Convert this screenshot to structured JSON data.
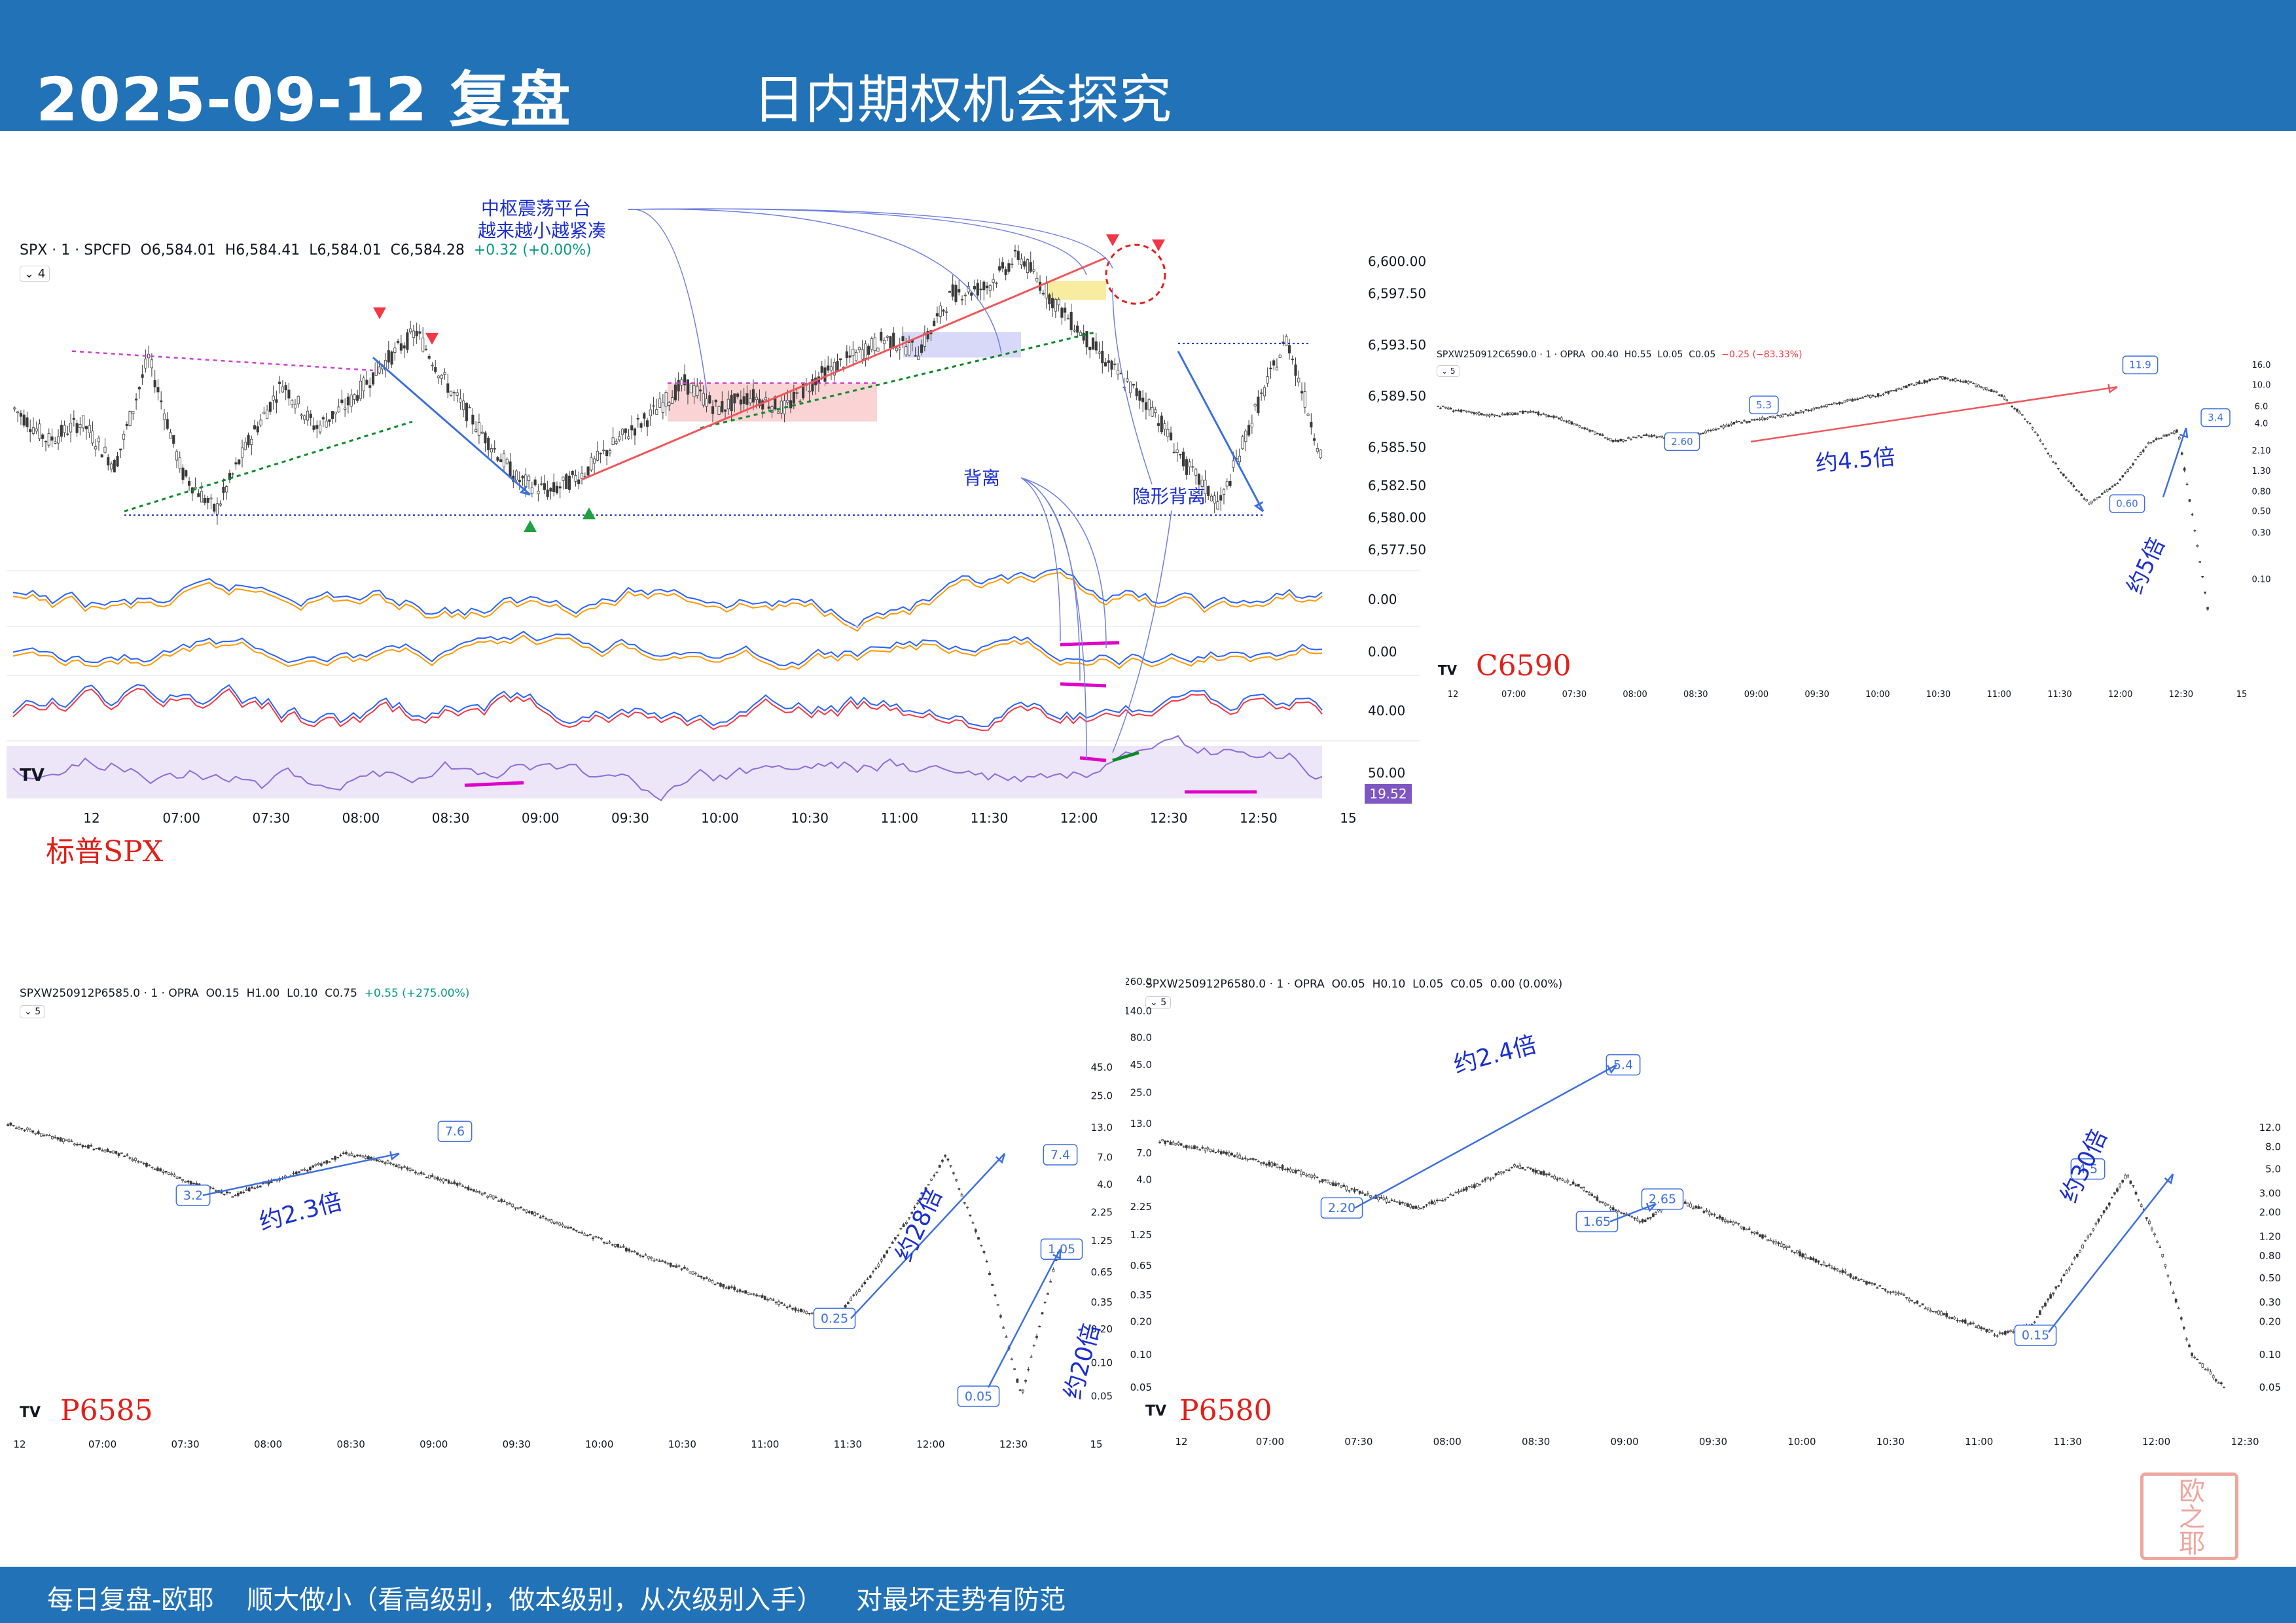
{
  "header": {
    "date_title": "2025-09-12 复盘",
    "subtitle": "日内期权机会探究"
  },
  "footer": {
    "text": "每日复盘-欧耶    顺大做小（看高级别，做本级别，从次级别入手）    对最坏走势有防范"
  },
  "stamp": "欧之耶",
  "colors": {
    "header_bg": "#2272b8",
    "candle": "#3a3a3a",
    "annot_blue": "#1c2fd0",
    "label_red": "#e0201a",
    "magenta": "#e000c8",
    "green_dash": "#0a8a2a",
    "arrow_blue": "#3d6fe0",
    "red_line": "#f0565a"
  },
  "chart_data": [
    {
      "id": "spx",
      "type": "line",
      "caption": "标普SPX",
      "tv_logo": "TV",
      "symbol": "SPX · 1 · SPCFD",
      "ohlc": {
        "o": "O6,584.01",
        "h": "H6,584.41",
        "l": "L6,584.01",
        "c": "C6,584.28",
        "chg": "+0.32 (+0.00%)"
      },
      "interval_badge": "4",
      "x_labels": [
        "12",
        "07:00",
        "07:30",
        "08:00",
        "08:30",
        "09:00",
        "09:30",
        "10:00",
        "10:30",
        "11:00",
        "11:30",
        "12:00",
        "12:30",
        "12:50",
        "15"
      ],
      "y_labels": [
        "6,600.00",
        "6,597.50",
        "6,593.50",
        "6,589.50",
        "6,585.50",
        "6,582.50",
        "6,580.00",
        "6,577.50"
      ],
      "ylim": [
        6577.5,
        6601
      ],
      "series": [
        {
          "values": [
            6588.5,
            6586,
            6587.5,
            6584,
            6592.5,
            6583.5,
            6580.5,
            6586,
            6590.5,
            6587,
            6589,
            6592,
            6594.5,
            6590,
            6586.5,
            6583,
            6582,
            6583.5,
            6586,
            6588,
            6590.5,
            6588.5,
            6589.5,
            6588.5,
            6591,
            6592.5,
            6594,
            6593,
            6597.5,
            6598,
            6600.5,
            6597,
            6594,
            6591,
            6588.5,
            6584,
            6581,
            6588,
            6594,
            6585
          ]
        }
      ],
      "indicator_labels": [
        "0.00",
        "0.00",
        "40.00",
        "50.00"
      ],
      "indicator_badge": "19.52",
      "annotations": {
        "platform": "中枢震荡平台",
        "tightening": "越来越小越紧凑",
        "divergence": "背离",
        "hidden_divergence": "隐形背离"
      }
    },
    {
      "id": "c6590",
      "type": "line",
      "caption": "C6590",
      "tv_logo": "TV",
      "symbol": "SPXW250912C6590.0 · 1 · OPRA",
      "ohlc": {
        "o": "O0.40",
        "h": "H0.55",
        "l": "L0.05",
        "c": "C0.05",
        "chg": "−0.25 (−83.33%)"
      },
      "interval_badge": "5",
      "x_labels": [
        "12",
        "07:00",
        "07:30",
        "08:00",
        "08:30",
        "09:00",
        "09:30",
        "10:00",
        "10:30",
        "11:00",
        "11:30",
        "12:00",
        "12:30",
        "15"
      ],
      "y_labels": [
        "16.0",
        "10.0",
        "6.0",
        "4.0",
        "2.10",
        "1.30",
        "0.80",
        "0.50",
        "0.30",
        "0.10"
      ],
      "y_scale": "log",
      "series": [
        {
          "values": [
            6.0,
            5.2,
            4.8,
            5.3,
            4.7,
            3.5,
            2.6,
            3.0,
            2.8,
            3.2,
            4.0,
            4.5,
            5.0,
            6.0,
            7.0,
            8.0,
            10.0,
            11.9,
            10.5,
            8.0,
            4.0,
            1.3,
            0.6,
            1.0,
            2.5,
            3.4,
            0.05
          ]
        }
      ],
      "callouts": [
        "5.3",
        "2.60",
        "11.9",
        "0.60",
        "3.4"
      ],
      "multiples": [
        "约4.5倍",
        "约5倍"
      ]
    },
    {
      "id": "p6585",
      "type": "line",
      "caption": "P6585",
      "tv_logo": "TV",
      "symbol": "SPXW250912P6585.0 · 1 · OPRA",
      "ohlc": {
        "o": "O0.15",
        "h": "H1.00",
        "l": "L0.10",
        "c": "C0.75",
        "chg": "+0.55 (+275.00%)"
      },
      "interval_badge": "5",
      "x_labels": [
        "12",
        "07:00",
        "07:30",
        "08:00",
        "08:30",
        "09:00",
        "09:30",
        "10:00",
        "10:30",
        "11:00",
        "11:30",
        "12:00",
        "12:30",
        "15"
      ],
      "y_labels": [
        "45.0",
        "25.0",
        "13.0",
        "7.0",
        "4.0",
        "2.25",
        "1.25",
        "0.65",
        "0.35",
        "0.20",
        "0.10",
        "0.05"
      ],
      "y_scale": "log",
      "series": [
        {
          "values": [
            14.0,
            11.0,
            9.0,
            7.5,
            5.5,
            4.0,
            3.2,
            4.2,
            5.5,
            7.6,
            6.5,
            5.0,
            4.0,
            3.0,
            2.2,
            1.6,
            1.2,
            0.9,
            0.7,
            0.5,
            0.4,
            0.3,
            0.25,
            0.6,
            2.0,
            7.4,
            1.0,
            0.05,
            1.05
          ]
        }
      ],
      "callouts": [
        "7.6",
        "3.2",
        "7.4",
        "1.05",
        "0.25",
        "0.05"
      ],
      "multiples": [
        "约2.3倍",
        "约28倍",
        "约20倍"
      ]
    },
    {
      "id": "p6580",
      "type": "line",
      "caption": "P6580",
      "tv_logo": "TV",
      "symbol": "SPXW250912P6580.0 · 1 · OPRA",
      "ohlc": {
        "o": "O0.05",
        "h": "H0.10",
        "l": "L0.05",
        "c": "C0.05",
        "chg": "0.00 (0.00%)"
      },
      "interval_badge": "5",
      "x_labels": [
        "12",
        "07:00",
        "07:30",
        "08:00",
        "08:30",
        "09:00",
        "09:30",
        "10:00",
        "10:30",
        "11:00",
        "11:30",
        "12:00",
        "12:30"
      ],
      "y_labels_left": [
        "260.0",
        "140.0",
        "80.0",
        "45.0",
        "25.0",
        "13.0",
        "7.0",
        "4.0",
        "2.25",
        "1.25",
        "0.65",
        "0.35",
        "0.20",
        "0.10",
        "0.05"
      ],
      "y_labels_right": [
        "12.0",
        "8.0",
        "5.0",
        "3.00",
        "2.00",
        "1.20",
        "0.80",
        "0.50",
        "0.30",
        "0.20",
        "0.10",
        "0.05"
      ],
      "y_scale": "log",
      "series": [
        {
          "values": [
            9.0,
            8.0,
            7.0,
            6.0,
            5.0,
            4.0,
            3.2,
            2.6,
            2.2,
            2.8,
            3.8,
            5.4,
            4.5,
            3.5,
            2.2,
            1.65,
            2.65,
            2.0,
            1.5,
            1.1,
            0.8,
            0.6,
            0.45,
            0.35,
            0.25,
            0.2,
            0.15,
            0.18,
            0.5,
            1.5,
            4.5,
            1.0,
            0.1,
            0.05
          ]
        }
      ],
      "callouts": [
        "2.20",
        "5.4",
        "1.65",
        "2.65",
        "0.15",
        "4.5"
      ],
      "multiples": [
        "约2.4倍",
        "约30倍"
      ]
    }
  ]
}
